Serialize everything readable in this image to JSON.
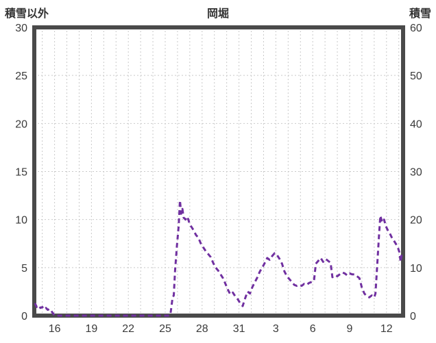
{
  "header": {
    "left_axis_title": "積雪以外",
    "chart_title": "岡堀",
    "right_axis_title": "積雪"
  },
  "colors": {
    "line": "#7030a0",
    "frame": "#4a4a4a",
    "grid": "#c9c9c9",
    "text": "#3a3a3a",
    "background": "#ffffff"
  },
  "chart_data": {
    "type": "line",
    "title": "岡堀",
    "left_axis": {
      "label": "積雪以外",
      "min": 0,
      "max": 30,
      "ticks": [
        0,
        5,
        10,
        15,
        20,
        25,
        30
      ]
    },
    "right_axis": {
      "label": "積雪",
      "min": 0,
      "max": 60,
      "ticks": [
        0,
        10,
        20,
        30,
        40,
        50,
        60
      ]
    },
    "x_axis": {
      "domain_min": 14.35,
      "domain_max": 44.35,
      "gridline_every_days": 1,
      "tick_days": [
        16,
        19,
        22,
        25,
        28,
        31,
        34,
        37,
        40,
        43
      ],
      "tick_labels": [
        "16",
        "19",
        "22",
        "25",
        "28",
        "31",
        "3",
        "6",
        "9",
        "12"
      ]
    },
    "grid": true,
    "legend_position": "none",
    "series": [
      {
        "name": "積雪以外",
        "color": "#7030a0",
        "style": "dashed",
        "points": [
          [
            14.4,
            1.3
          ],
          [
            14.55,
            0.9
          ],
          [
            14.7,
            1.05
          ],
          [
            14.85,
            0.8
          ],
          [
            15.0,
            0.9
          ],
          [
            15.15,
            0.65
          ],
          [
            15.3,
            0.8
          ],
          [
            15.45,
            0.6
          ],
          [
            15.6,
            0.7
          ],
          [
            15.75,
            0.45
          ],
          [
            15.9,
            0.2
          ],
          [
            16.0,
            0
          ],
          [
            17,
            0
          ],
          [
            18,
            0
          ],
          [
            19,
            0
          ],
          [
            20,
            0
          ],
          [
            21,
            0
          ],
          [
            22,
            0
          ],
          [
            23,
            0
          ],
          [
            24,
            0
          ],
          [
            25,
            0
          ],
          [
            25.35,
            0
          ],
          [
            25.45,
            0.4
          ],
          [
            25.6,
            1.9
          ],
          [
            25.7,
            2.1
          ],
          [
            25.8,
            4.6
          ],
          [
            25.95,
            7.2
          ],
          [
            26.1,
            9.4
          ],
          [
            26.2,
            12.0
          ],
          [
            26.3,
            10.6
          ],
          [
            26.4,
            11.1
          ],
          [
            26.5,
            10.2
          ],
          [
            26.65,
            10.0
          ],
          [
            26.8,
            10.3
          ],
          [
            26.95,
            9.7
          ],
          [
            27.1,
            9.3
          ],
          [
            27.3,
            8.9
          ],
          [
            27.5,
            8.4
          ],
          [
            27.7,
            8.1
          ],
          [
            27.9,
            7.5
          ],
          [
            28.1,
            7.1
          ],
          [
            28.3,
            6.7
          ],
          [
            28.5,
            6.4
          ],
          [
            28.7,
            6.1
          ],
          [
            28.9,
            5.5
          ],
          [
            29.1,
            5.0
          ],
          [
            29.3,
            4.7
          ],
          [
            29.5,
            4.3
          ],
          [
            29.7,
            3.9
          ],
          [
            29.9,
            3.3
          ],
          [
            30.1,
            2.7
          ],
          [
            30.3,
            2.2
          ],
          [
            30.5,
            2.4
          ],
          [
            30.7,
            2.0
          ],
          [
            30.9,
            1.7
          ],
          [
            31.1,
            1.3
          ],
          [
            31.3,
            1.0
          ],
          [
            31.5,
            1.8
          ],
          [
            31.7,
            2.5
          ],
          [
            31.9,
            2.3
          ],
          [
            32.1,
            3.0
          ],
          [
            32.3,
            3.5
          ],
          [
            32.5,
            4.0
          ],
          [
            32.7,
            4.6
          ],
          [
            32.9,
            5.0
          ],
          [
            33.1,
            5.5
          ],
          [
            33.3,
            6.0
          ],
          [
            33.5,
            5.8
          ],
          [
            33.7,
            6.2
          ],
          [
            33.9,
            6.5
          ],
          [
            34.1,
            6.3
          ],
          [
            34.3,
            5.9
          ],
          [
            34.5,
            5.4
          ],
          [
            34.7,
            4.6
          ],
          [
            34.9,
            4.1
          ],
          [
            35.1,
            3.8
          ],
          [
            35.3,
            3.5
          ],
          [
            35.5,
            3.2
          ],
          [
            35.7,
            3.1
          ],
          [
            35.9,
            3.2
          ],
          [
            36.1,
            3.1
          ],
          [
            36.3,
            3.3
          ],
          [
            36.5,
            3.2
          ],
          [
            36.7,
            3.4
          ],
          [
            36.9,
            3.5
          ],
          [
            37.1,
            3.6
          ],
          [
            37.25,
            5.4
          ],
          [
            37.45,
            5.7
          ],
          [
            37.65,
            6.0
          ],
          [
            37.85,
            5.6
          ],
          [
            38.05,
            5.9
          ],
          [
            38.25,
            5.7
          ],
          [
            38.45,
            5.5
          ],
          [
            38.6,
            4.0
          ],
          [
            38.8,
            4.2
          ],
          [
            39.0,
            4.1
          ],
          [
            39.2,
            4.3
          ],
          [
            39.4,
            4.5
          ],
          [
            39.6,
            4.4
          ],
          [
            39.8,
            4.2
          ],
          [
            40.0,
            4.4
          ],
          [
            40.2,
            4.3
          ],
          [
            40.4,
            4.3
          ],
          [
            40.6,
            4.1
          ],
          [
            40.8,
            3.9
          ],
          [
            41.0,
            2.9
          ],
          [
            41.2,
            2.3
          ],
          [
            41.4,
            2.0
          ],
          [
            41.6,
            1.9
          ],
          [
            41.8,
            2.1
          ],
          [
            42.0,
            1.9
          ],
          [
            42.1,
            2.3
          ],
          [
            42.25,
            5.3
          ],
          [
            42.4,
            8.5
          ],
          [
            42.5,
            10.4
          ],
          [
            42.65,
            9.7
          ],
          [
            42.8,
            10.0
          ],
          [
            42.95,
            9.3
          ],
          [
            43.1,
            8.9
          ],
          [
            43.25,
            8.6
          ],
          [
            43.4,
            8.2
          ],
          [
            43.55,
            7.9
          ],
          [
            43.7,
            7.6
          ],
          [
            43.85,
            7.3
          ],
          [
            43.95,
            7.0
          ],
          [
            44.05,
            6.6
          ],
          [
            44.15,
            5.6
          ],
          [
            44.25,
            6.5
          ]
        ]
      }
    ]
  }
}
